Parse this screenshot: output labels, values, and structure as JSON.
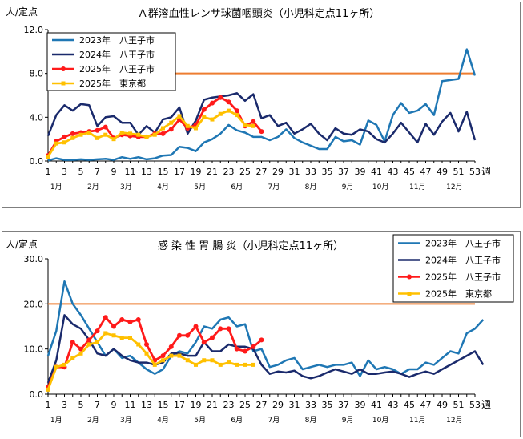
{
  "chart_data": [
    {
      "type": "line",
      "title": "Ａ群溶血性レンサ球菌咽頭炎（小児科定点11ヶ所）",
      "ylabel": "人/定点",
      "xlabel": "週",
      "ylim": [
        0,
        12
      ],
      "yticks": [
        "0.0",
        "4.0",
        "8.0",
        "12.0"
      ],
      "ytick_values": [
        0,
        4,
        8,
        12
      ],
      "xlim": [
        1,
        53
      ],
      "xticks": [
        1,
        3,
        5,
        7,
        9,
        11,
        13,
        15,
        17,
        19,
        21,
        23,
        25,
        27,
        29,
        31,
        33,
        35,
        37,
        39,
        41,
        43,
        45,
        47,
        49,
        51,
        53
      ],
      "months": [
        {
          "label": "1月",
          "week": 2
        },
        {
          "label": "2月",
          "week": 6.5
        },
        {
          "label": "3月",
          "week": 10.5
        },
        {
          "label": "4月",
          "week": 15
        },
        {
          "label": "5月",
          "week": 19.5
        },
        {
          "label": "6月",
          "week": 24
        },
        {
          "label": "7月",
          "week": 28.5
        },
        {
          "label": "8月",
          "week": 33
        },
        {
          "label": "9月",
          "week": 37.5
        },
        {
          "label": "10月",
          "week": 41.5
        },
        {
          "label": "11月",
          "week": 46
        },
        {
          "label": "12月",
          "week": 50.5
        }
      ],
      "threshold": 8.0,
      "threshold_color": "#ed7d31",
      "legend_position": "top-left",
      "series": [
        {
          "name": "2023年　八王子市",
          "color": "#1f77b4",
          "marker": "none",
          "values": [
            0.05,
            0.25,
            0.1,
            0.1,
            0.15,
            0.1,
            0.15,
            0.2,
            0.1,
            0.35,
            0.2,
            0.35,
            0.15,
            0.25,
            0.5,
            0.55,
            1.3,
            1.2,
            0.9,
            1.7,
            2.0,
            2.5,
            3.3,
            2.8,
            2.6,
            2.2,
            2.2,
            1.9,
            2.2,
            2.9,
            2.1,
            1.7,
            1.4,
            1.1,
            1.1,
            2.2,
            1.8,
            1.9,
            1.5,
            3.7,
            3.3,
            1.8,
            4.2,
            5.3,
            4.4,
            4.6,
            5.2,
            4.2,
            7.3,
            7.4,
            7.5,
            10.2,
            7.8
          ]
        },
        {
          "name": "2024年　八王子市",
          "color": "#1a2a6c",
          "marker": "none",
          "values": [
            2.3,
            4.2,
            5.1,
            4.6,
            5.2,
            5.1,
            3.2,
            4.0,
            4.1,
            3.5,
            3.5,
            2.4,
            3.2,
            2.6,
            3.8,
            4.0,
            4.9,
            2.5,
            3.7,
            5.6,
            5.8,
            5.9,
            6.0,
            6.2,
            5.5,
            6.1,
            3.9,
            4.2,
            3.2,
            3.5,
            2.5,
            2.9,
            3.4,
            2.5,
            1.9,
            3.0,
            2.5,
            2.4,
            2.9,
            2.7,
            2.0,
            1.7,
            2.5,
            3.5,
            2.6,
            1.7,
            3.4,
            2.4,
            3.6,
            4.4,
            2.7,
            4.5,
            1.9
          ]
        },
        {
          "name": "2025年　八王子市",
          "color": "#ff1a1a",
          "marker": "circle",
          "values": [
            0.5,
            1.8,
            2.2,
            2.5,
            2.6,
            2.7,
            2.8,
            3.1,
            2.1,
            2.4,
            2.3,
            2.2,
            2.2,
            2.5,
            2.5,
            2.9,
            3.8,
            3.0,
            3.3,
            4.7,
            5.3,
            5.8,
            5.4,
            4.6,
            3.2,
            3.6,
            2.7
          ]
        },
        {
          "name": "2025年　東京都",
          "color": "#ffc000",
          "marker": "square",
          "values": [
            0.4,
            1.6,
            1.7,
            2.1,
            2.4,
            2.6,
            2.1,
            2.4,
            2.0,
            2.6,
            2.5,
            2.4,
            2.2,
            2.4,
            3.0,
            3.5,
            4.1,
            3.2,
            3.0,
            4.0,
            3.8,
            4.3,
            4.6,
            4.2,
            3.3,
            3.2
          ]
        }
      ]
    },
    {
      "type": "line",
      "title": "感 染 性 胃 腸 炎（小児科定点11ヶ所）",
      "ylabel": "人/定点",
      "xlabel": "週",
      "ylim": [
        0,
        30
      ],
      "yticks": [
        "0.0",
        "10.0",
        "20.0",
        "30.0"
      ],
      "ytick_values": [
        0,
        10,
        20,
        30
      ],
      "xlim": [
        1,
        53
      ],
      "xticks": [
        1,
        3,
        5,
        7,
        9,
        11,
        13,
        15,
        17,
        19,
        21,
        23,
        25,
        27,
        29,
        31,
        33,
        35,
        37,
        39,
        41,
        43,
        45,
        47,
        49,
        51,
        53
      ],
      "months": [
        {
          "label": "1月",
          "week": 2
        },
        {
          "label": "2月",
          "week": 6.5
        },
        {
          "label": "3月",
          "week": 10.5
        },
        {
          "label": "4月",
          "week": 15
        },
        {
          "label": "5月",
          "week": 19.5
        },
        {
          "label": "6月",
          "week": 24
        },
        {
          "label": "7月",
          "week": 28.5
        },
        {
          "label": "8月",
          "week": 33
        },
        {
          "label": "9月",
          "week": 37.5
        },
        {
          "label": "10月",
          "week": 41.5
        },
        {
          "label": "11月",
          "week": 46
        },
        {
          "label": "12月",
          "week": 50.5
        }
      ],
      "threshold": 20.0,
      "threshold_color": "#ed7d31",
      "legend_position": "top-right",
      "series": [
        {
          "name": "2023年　八王子市",
          "color": "#1f77b4",
          "marker": "none",
          "values": [
            8.5,
            14.0,
            25.0,
            20.0,
            17.5,
            14.5,
            11.5,
            8.5,
            10.0,
            8.0,
            8.5,
            7.0,
            5.5,
            4.5,
            5.5,
            8.5,
            9.5,
            9.0,
            11.5,
            15.0,
            14.5,
            16.5,
            17.0,
            15.0,
            15.5,
            9.5,
            10.0,
            6.0,
            6.5,
            7.5,
            8.0,
            5.5,
            6.0,
            6.5,
            6.0,
            6.5,
            6.5,
            7.0,
            4.0,
            7.5,
            5.5,
            6.0,
            5.5,
            4.5,
            5.5,
            5.5,
            7.0,
            6.5,
            8.0,
            9.5,
            9.0,
            13.5,
            14.5,
            16.5
          ]
        },
        {
          "name": "2024年　八王子市",
          "color": "#1a2a6c",
          "marker": "none",
          "values": [
            2.5,
            7.5,
            17.5,
            15.5,
            14.5,
            12.0,
            9.0,
            8.5,
            10.0,
            8.5,
            7.5,
            7.0,
            7.0,
            6.5,
            7.0,
            9.0,
            9.0,
            8.5,
            8.5,
            11.5,
            9.5,
            9.5,
            11.0,
            10.5,
            10.5,
            10.0,
            6.5,
            4.5,
            5.0,
            4.8,
            5.2,
            4.0,
            3.5,
            4.0,
            4.8,
            5.5,
            5.0,
            4.5,
            5.5,
            4.5,
            4.5,
            4.8,
            5.0,
            4.5,
            3.8,
            4.5,
            5.0,
            4.5,
            5.5,
            6.5,
            7.5,
            8.5,
            9.5,
            6.5
          ]
        },
        {
          "name": "2025年　八王子市",
          "color": "#ff1a1a",
          "marker": "circle",
          "values": [
            1.5,
            6.0,
            6.0,
            11.5,
            10.0,
            12.0,
            14.0,
            17.0,
            15.0,
            16.5,
            16.0,
            16.5,
            11.0,
            7.5,
            8.5,
            10.5,
            13.0,
            13.0,
            15.0,
            11.5,
            12.5,
            14.5,
            14.5,
            10.0,
            9.5,
            10.5,
            12.0
          ]
        },
        {
          "name": "2025年　東京都",
          "color": "#ffc000",
          "marker": "square",
          "values": [
            1.0,
            6.0,
            6.5,
            8.0,
            9.0,
            11.0,
            11.5,
            13.5,
            13.0,
            12.5,
            12.5,
            11.0,
            9.0,
            6.5,
            7.5,
            8.5,
            8.5,
            7.5,
            6.5,
            7.5,
            7.5,
            6.5,
            7.0,
            6.5,
            6.5,
            6.5
          ]
        }
      ]
    }
  ]
}
